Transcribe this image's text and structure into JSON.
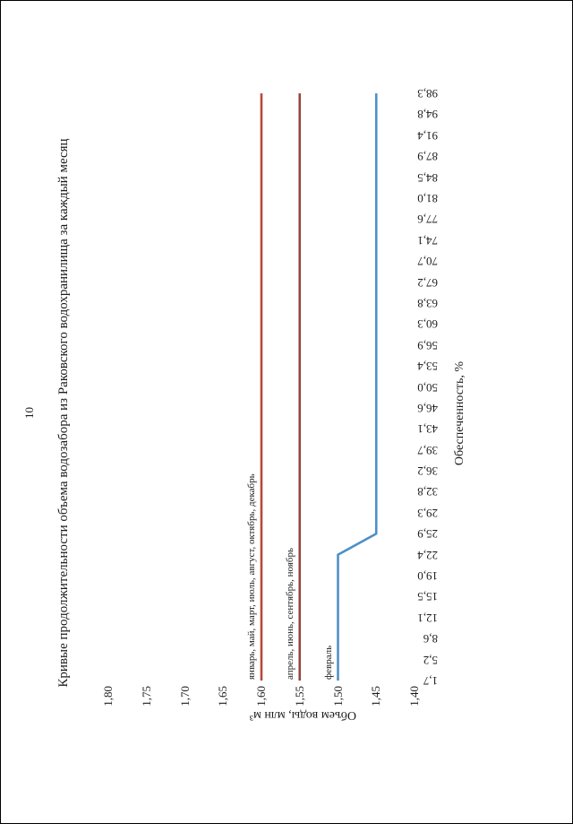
{
  "page": {
    "number": "10",
    "title": "Кривые продолжительности объема водозабора из Раковского водохранилища за каждый месяц"
  },
  "chart_data": {
    "type": "line",
    "title": "Кривые продолжительности объема водозабора из Раковского водохранилища за каждый месяц",
    "xlabel": "Обеспеченность, %",
    "ylabel": "Объем воды, млн м³",
    "grid": false,
    "legend_position": "inline-labels-at-left-end-of-lines",
    "ylim": [
      1.4,
      1.8
    ],
    "y_ticks": [
      "1,80",
      "1,75",
      "1,70",
      "1,65",
      "1,60",
      "1,55",
      "1,50",
      "1,45",
      "1,40"
    ],
    "x_ticks": [
      "1,7",
      "5,2",
      "8,6",
      "12,1",
      "15,5",
      "19,0",
      "22,4",
      "25,9",
      "29,3",
      "32,8",
      "36,2",
      "39,7",
      "43,1",
      "46,6",
      "50,0",
      "53,4",
      "56,9",
      "60,3",
      "63,8",
      "67,2",
      "70,7",
      "74,1",
      "77,6",
      "81,0",
      "84,5",
      "87,9",
      "91,4",
      "94,8",
      "98,3"
    ],
    "x_values": [
      1.7,
      5.2,
      8.6,
      12.1,
      15.5,
      19.0,
      22.4,
      25.9,
      29.3,
      32.8,
      36.2,
      39.7,
      43.1,
      46.6,
      50.0,
      53.4,
      56.9,
      60.3,
      63.8,
      67.2,
      70.7,
      74.1,
      77.6,
      81.0,
      84.5,
      87.9,
      91.4,
      94.8,
      98.3
    ],
    "series": [
      {
        "name": "январь, май, март, июль, август, октябрь, декабрь",
        "color": "#b5493d",
        "values": [
          1.6,
          1.6,
          1.6,
          1.6,
          1.6,
          1.6,
          1.6,
          1.6,
          1.6,
          1.6,
          1.6,
          1.6,
          1.6,
          1.6,
          1.6,
          1.6,
          1.6,
          1.6,
          1.6,
          1.6,
          1.6,
          1.6,
          1.6,
          1.6,
          1.6,
          1.6,
          1.6,
          1.6,
          1.6
        ]
      },
      {
        "name": "апрель, июнь, сентябрь, ноябрь",
        "color": "#93463e",
        "values": [
          1.55,
          1.55,
          1.55,
          1.55,
          1.55,
          1.55,
          1.55,
          1.55,
          1.55,
          1.55,
          1.55,
          1.55,
          1.55,
          1.55,
          1.55,
          1.55,
          1.55,
          1.55,
          1.55,
          1.55,
          1.55,
          1.55,
          1.55,
          1.55,
          1.55,
          1.55,
          1.55,
          1.55,
          1.55
        ]
      },
      {
        "name": "февраль",
        "color": "#4e8fc7",
        "values": [
          1.5,
          1.5,
          1.5,
          1.5,
          1.5,
          1.5,
          1.5,
          1.45,
          1.45,
          1.45,
          1.45,
          1.45,
          1.45,
          1.45,
          1.45,
          1.45,
          1.45,
          1.45,
          1.45,
          1.45,
          1.45,
          1.45,
          1.45,
          1.45,
          1.45,
          1.45,
          1.45,
          1.45,
          1.45
        ]
      }
    ]
  }
}
